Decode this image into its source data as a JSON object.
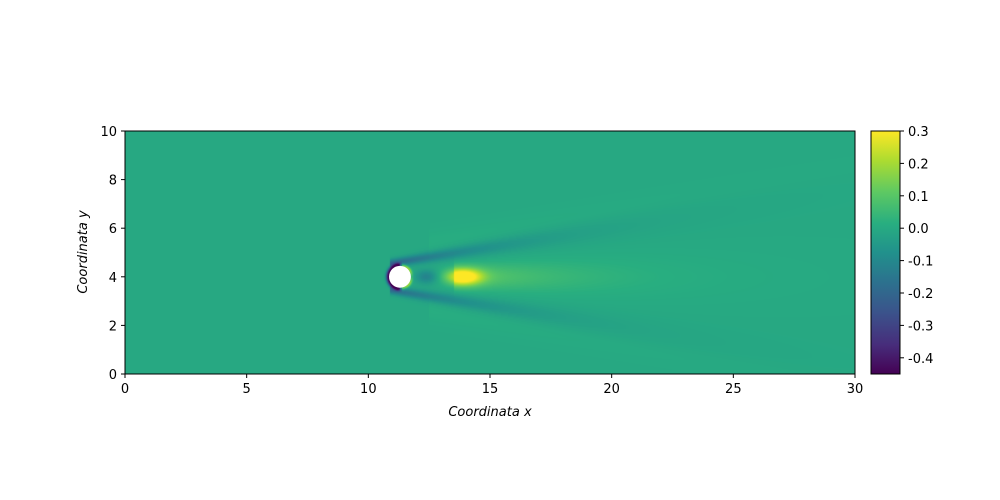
{
  "chart_data": {
    "type": "heatmap",
    "title": "",
    "xlabel": "Coordinata x",
    "ylabel": "Coordinata y",
    "xlim": [
      0,
      30
    ],
    "ylim": [
      0,
      10
    ],
    "x_ticks": [
      "0",
      "5",
      "10",
      "15",
      "20",
      "25",
      "30"
    ],
    "y_ticks": [
      "0",
      "2",
      "4",
      "6",
      "8",
      "10"
    ],
    "obstacle": {
      "shape": "circle",
      "center": [
        11.3,
        4.0
      ],
      "radius": 0.45
    },
    "colormap": "viridis",
    "colorbar": {
      "range": [
        -0.45,
        0.3
      ],
      "ticks": [
        "0.3",
        "0.2",
        "0.1",
        "0.0",
        "-0.1",
        "-0.2",
        "-0.3",
        "-0.4"
      ],
      "tick_values": [
        0.3,
        0.2,
        0.1,
        0.0,
        -0.1,
        -0.2,
        -0.3,
        -0.4
      ]
    },
    "background_value": 0.0,
    "features": [
      {
        "name": "wake core",
        "x": 13.9,
        "y": 4.0,
        "value": 0.3
      },
      {
        "name": "upper shear layer",
        "x": 12.7,
        "y": 4.8,
        "value": -0.2
      },
      {
        "name": "lower shear layer",
        "x": 12.7,
        "y": 3.2,
        "value": -0.18
      },
      {
        "name": "near-wake trough",
        "x": 12.4,
        "y": 4.0,
        "value": -0.12
      },
      {
        "name": "cylinder front edge",
        "x": 10.9,
        "y": 4.0,
        "value": -0.45
      }
    ]
  }
}
